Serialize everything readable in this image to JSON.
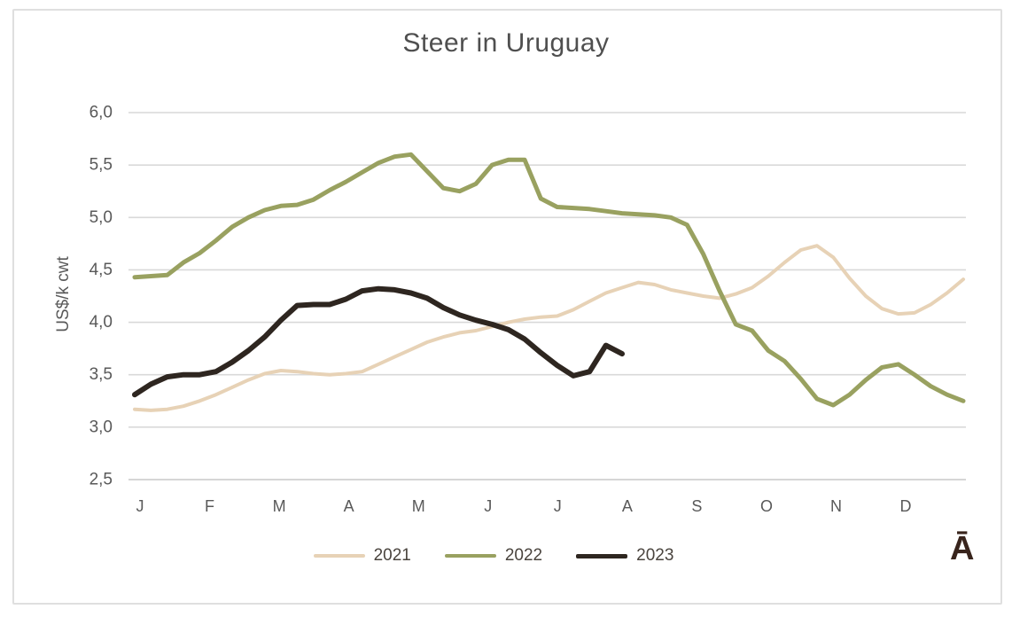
{
  "window": {
    "background": "#ffffff",
    "frame_border_color": "#dfdfdf"
  },
  "watermark": {
    "text": "Ā",
    "color": "#38241c"
  },
  "chart_data": {
    "type": "line",
    "title": "Steer in Uruguay",
    "xlabel": "",
    "ylabel": "US$/k cwt",
    "grid": true,
    "legend_position": "bottom",
    "x_unit": "weekly, Jan–Dec",
    "x_axis": {
      "month_labels": [
        "J",
        "F",
        "M",
        "A",
        "M",
        "J",
        "J",
        "A",
        "S",
        "O",
        "N",
        "D"
      ]
    },
    "y_axis": {
      "min": 2.5,
      "max": 6.0,
      "tick_step": 0.5,
      "tick_labels": [
        "2,5",
        "3,0",
        "3,5",
        "4,0",
        "4,5",
        "5,0",
        "5,5",
        "6,0"
      ]
    },
    "grid_color": "#d9d9d9",
    "axis_text_color": "#595959",
    "series": [
      {
        "name": "2021",
        "color": "#e7d2b6",
        "line_width": 4,
        "values": [
          3.17,
          3.16,
          3.17,
          3.2,
          3.25,
          3.31,
          3.38,
          3.45,
          3.51,
          3.54,
          3.53,
          3.51,
          3.5,
          3.51,
          3.53,
          3.6,
          3.67,
          3.74,
          3.81,
          3.86,
          3.9,
          3.92,
          3.96,
          4.0,
          4.03,
          4.05,
          4.06,
          4.12,
          4.2,
          4.28,
          4.33,
          4.38,
          4.36,
          4.31,
          4.28,
          4.25,
          4.23,
          4.27,
          4.33,
          4.44,
          4.57,
          4.69,
          4.73,
          4.62,
          4.42,
          4.25,
          4.13,
          4.08,
          4.09,
          4.17,
          4.28,
          4.41
        ]
      },
      {
        "name": "2022",
        "color": "#99a160",
        "line_width": 5,
        "values": [
          4.43,
          4.44,
          4.45,
          4.57,
          4.66,
          4.78,
          4.91,
          5.0,
          5.07,
          5.11,
          5.12,
          5.17,
          5.26,
          5.34,
          5.43,
          5.52,
          5.58,
          5.6,
          5.44,
          5.28,
          5.25,
          5.32,
          5.5,
          5.55,
          5.55,
          5.18,
          5.1,
          5.09,
          5.08,
          5.06,
          5.04,
          5.03,
          5.02,
          5.0,
          4.93,
          4.65,
          4.3,
          3.98,
          3.92,
          3.73,
          3.63,
          3.46,
          3.27,
          3.21,
          3.31,
          3.45,
          3.57,
          3.6,
          3.5,
          3.39,
          3.31,
          3.25
        ]
      },
      {
        "name": "2023",
        "color": "#2e2620",
        "line_width": 6,
        "values": [
          3.31,
          3.41,
          3.48,
          3.5,
          3.5,
          3.53,
          3.62,
          3.73,
          3.86,
          4.02,
          4.16,
          4.17,
          4.17,
          4.22,
          4.3,
          4.32,
          4.31,
          4.28,
          4.23,
          4.14,
          4.07,
          4.02,
          3.98,
          3.93,
          3.84,
          3.71,
          3.59,
          3.49,
          3.53,
          3.78,
          3.7
        ]
      }
    ]
  }
}
